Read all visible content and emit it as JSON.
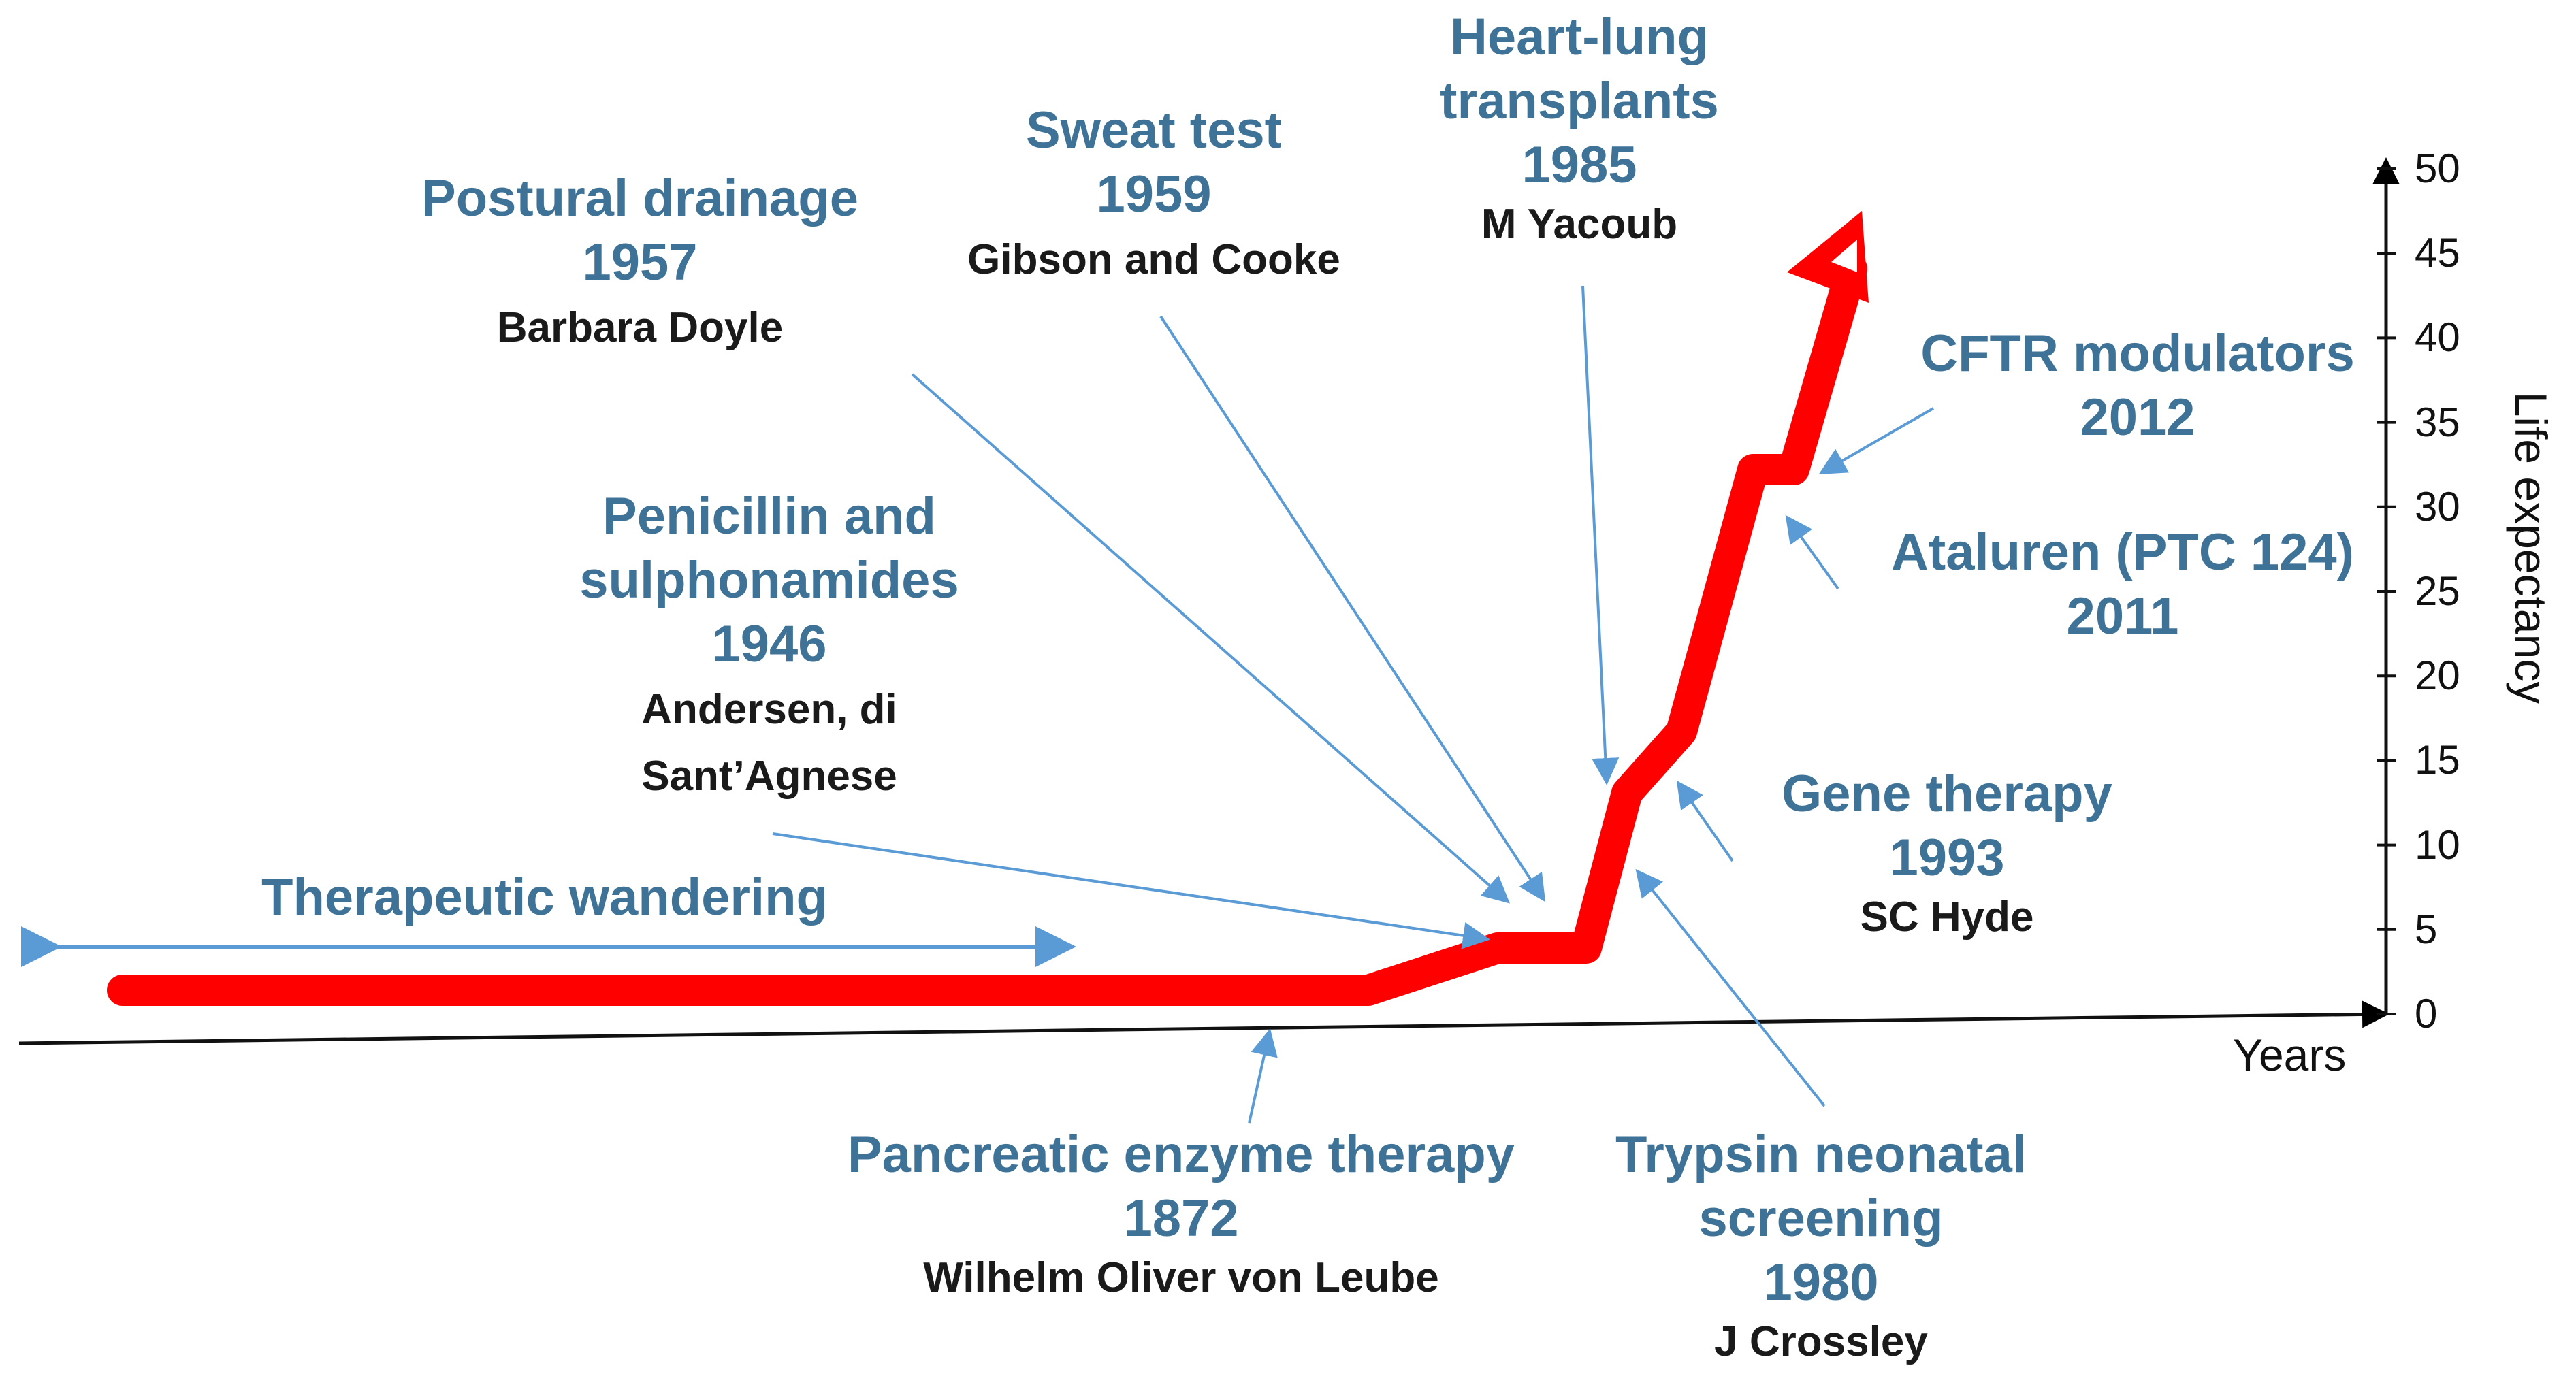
{
  "colors": {
    "curve": "#FF0000",
    "arrow": "#5B9BD5",
    "title_text": "#3E7397",
    "author_text": "#1A1A1A",
    "axis": "#111111"
  },
  "axis": {
    "x_label": "Years",
    "y_label": "Life expectancy",
    "y_ticks": [
      "0",
      "5",
      "10",
      "15",
      "20",
      "25",
      "30",
      "35",
      "40",
      "45",
      "50"
    ]
  },
  "period": {
    "label": "Therapeutic wandering"
  },
  "milestones": [
    {
      "id": "postural",
      "title": "Postural  drainage",
      "year": "1957",
      "author": "Barbara Doyle"
    },
    {
      "id": "sweat",
      "title": "Sweat test",
      "year": "1959",
      "author": "Gibson  and Cooke"
    },
    {
      "id": "heartlung",
      "title": "Heart-lung",
      "title2": "transplants",
      "year": "1985",
      "author": "M Yacoub"
    },
    {
      "id": "cftr",
      "title": "CFTR  modulators",
      "year": "2012"
    },
    {
      "id": "penicillin",
      "title": "Penicillin and",
      "title2": "sulphonamides",
      "year": "1946",
      "author": "Andersen, di",
      "author2": "Sant’Agnese"
    },
    {
      "id": "ataluren",
      "title": "Ataluren (PTC 124)",
      "year": "2011"
    },
    {
      "id": "gene",
      "title": "Gene therapy",
      "year": "1993",
      "author": "SC Hyde"
    },
    {
      "id": "pancreatic",
      "title": "Pancreatic enzyme therapy",
      "year": "1872",
      "author": "Wilhelm Oliver von Leube"
    },
    {
      "id": "trypsin",
      "title": "Trypsin  neonatal",
      "title2": "screening",
      "year": "1980",
      "author": "J Crossley"
    }
  ]
}
